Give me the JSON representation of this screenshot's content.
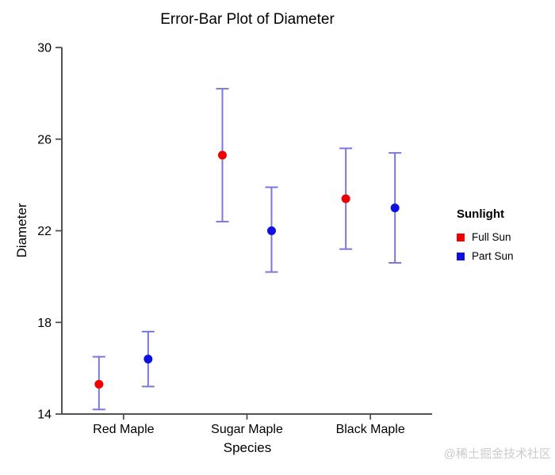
{
  "watermark": "@稀土掘金技术社区",
  "chart_data": {
    "type": "scatter",
    "subtype": "error-bar",
    "title": "Error-Bar Plot of Diameter",
    "xlabel": "Species",
    "ylabel": "Diameter",
    "categories": [
      "Red Maple",
      "Sugar Maple",
      "Black Maple"
    ],
    "ylim": [
      14,
      30
    ],
    "y_ticks": [
      14,
      18,
      22,
      26,
      30
    ],
    "grid": false,
    "legend": {
      "title": "Sunlight",
      "position": "right",
      "entries": [
        {
          "label": "Full Sun",
          "color": "#ee0000"
        },
        {
          "label": "Part Sun",
          "color": "#0f0fe0"
        }
      ]
    },
    "errorbar_color": "#7878dd",
    "axis_color": "#515151",
    "series": [
      {
        "name": "Full Sun",
        "marker_color": "#ee0000",
        "points": [
          {
            "category": "Red Maple",
            "mean": 15.3,
            "low": 14.2,
            "high": 16.5
          },
          {
            "category": "Sugar Maple",
            "mean": 25.3,
            "low": 22.4,
            "high": 28.2
          },
          {
            "category": "Black Maple",
            "mean": 23.4,
            "low": 21.2,
            "high": 25.6
          }
        ]
      },
      {
        "name": "Part Sun",
        "marker_color": "#0f0fe0",
        "points": [
          {
            "category": "Red Maple",
            "mean": 16.4,
            "low": 15.2,
            "high": 17.6
          },
          {
            "category": "Sugar Maple",
            "mean": 22.0,
            "low": 20.2,
            "high": 23.9
          },
          {
            "category": "Black Maple",
            "mean": 23.0,
            "low": 20.6,
            "high": 25.4
          }
        ]
      }
    ]
  }
}
